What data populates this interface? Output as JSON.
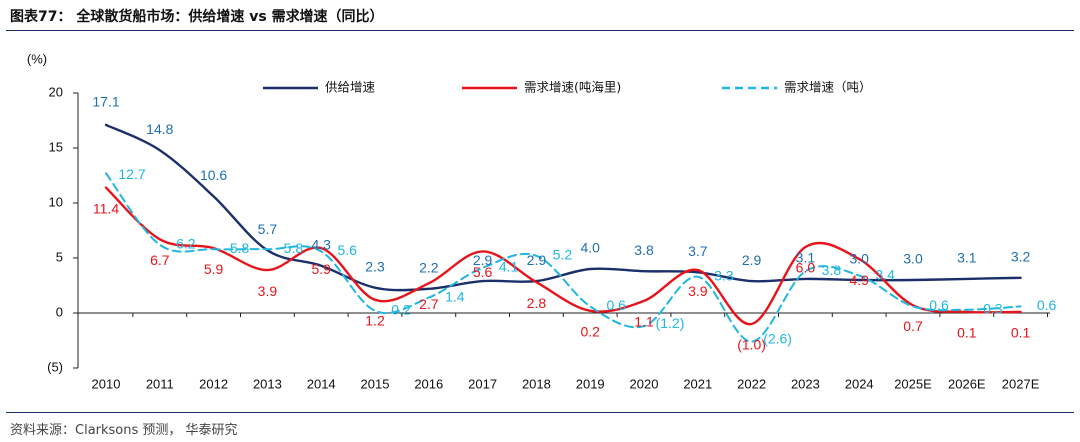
{
  "figure": {
    "title": "图表77：  全球散货船市场：供给增速 vs 需求增速（同比）",
    "source": "资料来源：Clarksons 预测， 华泰研究"
  },
  "chart_data": {
    "type": "line",
    "ylabel": "(%)",
    "ylim": [
      -5,
      20
    ],
    "yticks": [
      -5,
      0,
      5,
      10,
      15,
      20
    ],
    "ytick_labels": [
      "(5)",
      "0",
      "5",
      "10",
      "15",
      "20"
    ],
    "categories": [
      "2010",
      "2011",
      "2012",
      "2013",
      "2014",
      "2015",
      "2016",
      "2017",
      "2018",
      "2019",
      "2020",
      "2021",
      "2022",
      "2023",
      "2024",
      "2025E",
      "2026E",
      "2027E"
    ],
    "grid": false,
    "legend_position": "top",
    "series": [
      {
        "name": "供给增速",
        "color": "#1b2f6b",
        "dash": "solid",
        "values": [
          17.1,
          14.8,
          10.6,
          5.7,
          4.3,
          2.3,
          2.2,
          2.9,
          2.9,
          4.0,
          3.8,
          3.7,
          2.9,
          3.1,
          3.0,
          3.0,
          3.1,
          3.2
        ],
        "labels": [
          "17.1",
          "14.8",
          "10.6",
          "5.7",
          "4.3",
          "2.3",
          "2.2",
          "2.9",
          "2.9",
          "4.0",
          "3.8",
          "3.7",
          "2.9",
          "3.1",
          "3.0",
          "3.0",
          "3.1",
          "3.2"
        ],
        "label_color": "#1f6fb2"
      },
      {
        "name": "需求增速(吨海里)",
        "color": "#e8141b",
        "dash": "solid",
        "values": [
          11.4,
          6.7,
          5.9,
          3.9,
          5.9,
          1.2,
          2.7,
          5.6,
          2.8,
          0.2,
          1.1,
          3.9,
          -1.0,
          6.0,
          4.9,
          0.7,
          0.1,
          0.1
        ],
        "labels": [
          "11.4",
          "6.7",
          "5.9",
          "3.9",
          "5.9",
          "1.2",
          "2.7",
          "5.6",
          "2.8",
          "0.2",
          "1.1",
          "3.9",
          "(1.0)",
          "6.0",
          "4.9",
          "0.7",
          "0.1",
          "0.1"
        ],
        "label_color": "#e8141b"
      },
      {
        "name": "需求增速（吨）",
        "color": "#1fb6e0",
        "dash": "dashed",
        "values": [
          12.7,
          6.2,
          5.8,
          5.8,
          5.6,
          0.2,
          1.4,
          4.1,
          5.2,
          0.6,
          -1.2,
          3.3,
          -2.6,
          3.8,
          3.4,
          0.6,
          0.3,
          0.6
        ],
        "labels": [
          "12.7",
          "6.2",
          "5.8",
          "5.8",
          "5.6",
          "0.2",
          "1.4",
          "4.1",
          "5.2",
          "0.6",
          "(1.2)",
          "3.3",
          "(2.6)",
          "3.8",
          "3.4",
          "0.6",
          "0.3",
          "0.6"
        ],
        "label_color": "#1fb6e0"
      }
    ]
  }
}
